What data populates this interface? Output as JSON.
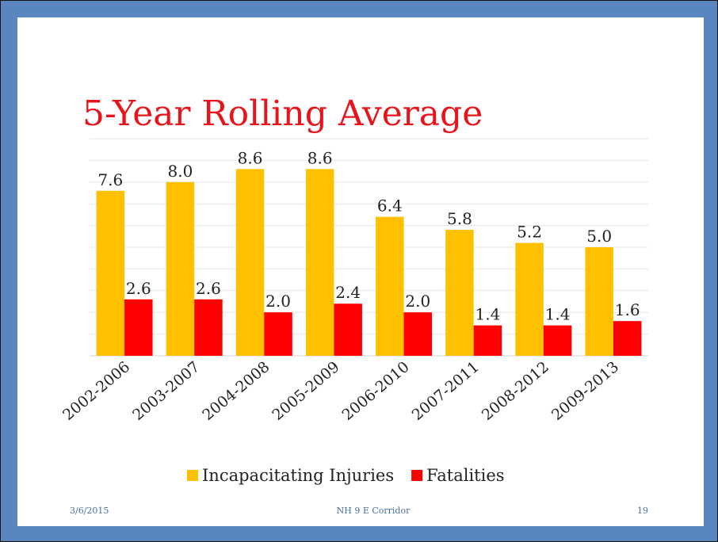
{
  "chart_data": {
    "type": "bar",
    "title": "5-Year Rolling Average",
    "categories": [
      "2002-2006",
      "2003-2007",
      "2004-2008",
      "2005-2009",
      "2006-2010",
      "2007-2011",
      "2008-2012",
      "2009-2013"
    ],
    "series": [
      {
        "name": "Incapacitating Injuries",
        "color": "#ffc000",
        "values": [
          7.6,
          8,
          8.6,
          8.6,
          6.4,
          5.8,
          5.2,
          5
        ],
        "value_labels": [
          "7.6",
          "8.0",
          "8.6",
          "8.6",
          "6.4",
          "5.8",
          "5.2",
          "5.0"
        ]
      },
      {
        "name": "Fatalities",
        "color": "#ff0000",
        "values": [
          2.6,
          2.6,
          2,
          2.4,
          2,
          1.4,
          1.4,
          1.6
        ],
        "value_labels": [
          "2.6",
          "2.6",
          "2.0",
          "2.4",
          "2.0",
          "1.4",
          "1.4",
          "1.6"
        ]
      }
    ],
    "ylim": [
      0,
      10
    ],
    "yticks": [
      0,
      1,
      2,
      3,
      4,
      5,
      6,
      7,
      8,
      9,
      10
    ],
    "grid": true,
    "legend": "bottom"
  },
  "footer": {
    "date": "3/6/2015",
    "center": "NH 9 E Corridor",
    "page": "19"
  }
}
